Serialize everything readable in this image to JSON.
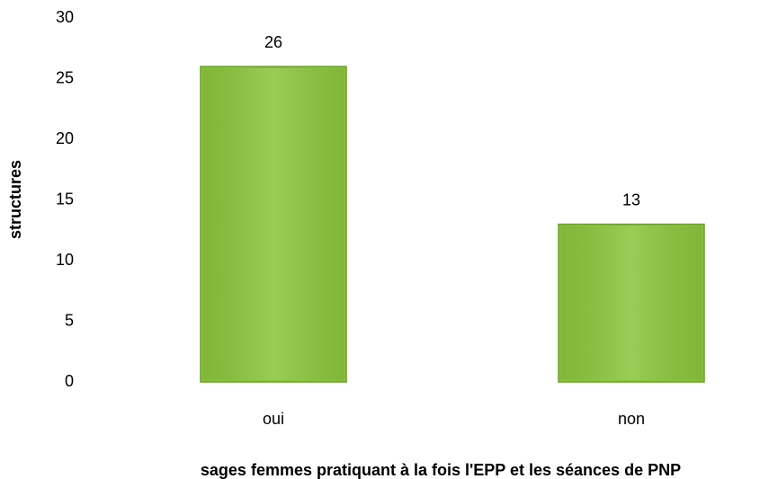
{
  "chart_data": {
    "type": "bar",
    "categories": [
      "oui",
      "non"
    ],
    "values": [
      26,
      13
    ],
    "color": "#8cc63e",
    "ylim": [
      0,
      30
    ],
    "yticks": [
      0,
      5,
      10,
      15,
      20,
      25,
      30
    ],
    "xlabel": "sages femmes pratiquant à la fois l'EPP et les séances de PNP",
    "ylabel": "structures",
    "grid": false
  }
}
